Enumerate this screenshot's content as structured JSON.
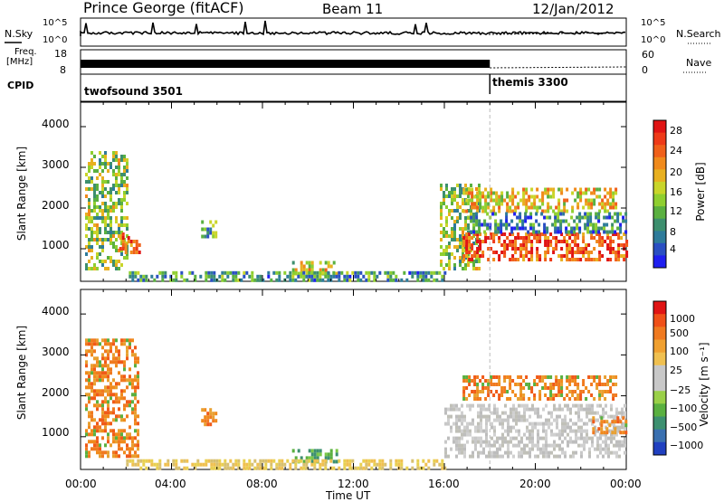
{
  "header": {
    "station": "Prince George (fitACF)",
    "beam": "Beam 11",
    "date": "12/Jan/2012"
  },
  "strip_labels": {
    "nsky": "N.Sky",
    "nsearch": "N.Search",
    "freq": "Freq.",
    "freq_unit": "[MHz]",
    "nave": "Nave",
    "cpid": "CPID",
    "nsky_ticks": [
      "10^5",
      "10^0"
    ],
    "freq_ticks": [
      "18",
      "8"
    ],
    "nave_ticks": [
      "60",
      "0"
    ]
  },
  "cpid": {
    "left": "twofsound 3501",
    "right": "themis 3300",
    "switch_hour": 18
  },
  "chart_data": [
    {
      "type": "heatmap",
      "name": "Power",
      "ylabel": "Slant Range [km]",
      "xlabel": "Time UT",
      "xlim": [
        0,
        24
      ],
      "ylim": [
        200,
        4600
      ],
      "yticks": [
        "1000",
        "2000",
        "3000",
        "4000"
      ],
      "colorbar_label": "Power [dB]",
      "colorbar_ticks": [
        "4",
        "8",
        "12",
        "16",
        "20",
        "24",
        "28"
      ],
      "colorbar_colors": [
        "#1f1ff0",
        "#2a4fc2",
        "#2e7b9a",
        "#3d8f6e",
        "#5ab040",
        "#8fcf30",
        "#c9d52a",
        "#e8b020",
        "#f08a1c",
        "#f0601a",
        "#ee3a18",
        "#e01414"
      ],
      "regions": [
        {
          "t0": 0.2,
          "t1": 2.0,
          "r0": 500,
          "r1": 3400,
          "level": 0.45
        },
        {
          "t0": 1.7,
          "t1": 2.6,
          "r0": 900,
          "r1": 1400,
          "level": 0.8
        },
        {
          "t0": 5.3,
          "t1": 6.0,
          "r0": 1300,
          "r1": 1700,
          "level": 0.35
        },
        {
          "t0": 9.3,
          "t1": 11.3,
          "r0": 400,
          "r1": 700,
          "level": 0.55
        },
        {
          "t0": 2.0,
          "t1": 16.0,
          "r0": 250,
          "r1": 450,
          "level": 0.3
        },
        {
          "t0": 15.8,
          "t1": 17.5,
          "r0": 500,
          "r1": 2600,
          "level": 0.45
        },
        {
          "t0": 16.8,
          "t1": 24.0,
          "r0": 750,
          "r1": 1400,
          "level": 0.85
        },
        {
          "t0": 16.8,
          "t1": 23.6,
          "r0": 1900,
          "r1": 2500,
          "level": 0.6
        },
        {
          "t0": 17.0,
          "t1": 24.0,
          "r0": 1400,
          "r1": 1900,
          "level": 0.25
        }
      ]
    },
    {
      "type": "heatmap",
      "name": "Velocity",
      "ylabel": "Slant Range [km]",
      "xlabel": "Time UT",
      "xlim": [
        0,
        24
      ],
      "ylim": [
        200,
        4600
      ],
      "yticks": [
        "1000",
        "2000",
        "3000",
        "4000"
      ],
      "xticks": [
        "00:00",
        "04:00",
        "08:00",
        "12:00",
        "16:00",
        "20:00",
        "00:00"
      ],
      "colorbar_label": "Velocity [m s⁻¹]",
      "colorbar_ticks": [
        "1000",
        "500",
        "100",
        "25",
        "−25",
        "−100",
        "−500",
        "−1000"
      ],
      "colorbar_colors": [
        "#2040c0",
        "#3a70b0",
        "#3d9070",
        "#5ab040",
        "#9ad048",
        "#c8c8c8",
        "#c8c8c8",
        "#f0c050",
        "#f0a030",
        "#f07a20",
        "#f05018",
        "#e01414"
      ],
      "regions": [
        {
          "t0": 0.2,
          "t1": 2.5,
          "r0": 500,
          "r1": 3400,
          "kind": "orange"
        },
        {
          "t0": 5.3,
          "t1": 6.0,
          "r0": 1300,
          "r1": 1700,
          "kind": "orange"
        },
        {
          "t0": 9.3,
          "t1": 11.3,
          "r0": 400,
          "r1": 700,
          "kind": "green"
        },
        {
          "t0": 2.0,
          "t1": 16.0,
          "r0": 250,
          "r1": 450,
          "kind": "yellow"
        },
        {
          "t0": 16.0,
          "t1": 24.0,
          "r0": 500,
          "r1": 1800,
          "kind": "gray"
        },
        {
          "t0": 16.8,
          "t1": 23.6,
          "r0": 1900,
          "r1": 2500,
          "kind": "orange"
        },
        {
          "t0": 22.5,
          "t1": 24.0,
          "r0": 1100,
          "r1": 1500,
          "kind": "orange"
        }
      ]
    }
  ]
}
